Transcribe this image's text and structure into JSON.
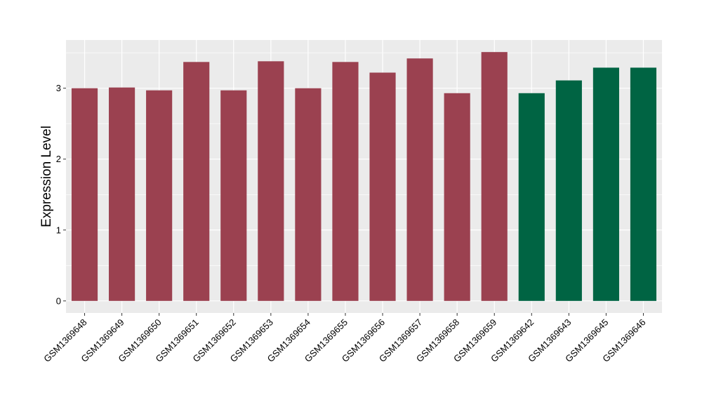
{
  "chart_data": {
    "type": "bar",
    "title": "",
    "xlabel": "",
    "ylabel": "Expression Level",
    "ylim": [
      -0.17,
      3.68
    ],
    "yticks": [
      0,
      1,
      2,
      3
    ],
    "grid": true,
    "legend": "none",
    "categories": [
      "GSM1369648",
      "GSM1369649",
      "GSM1369650",
      "GSM1369651",
      "GSM1369652",
      "GSM1369653",
      "GSM1369654",
      "GSM1369655",
      "GSM1369656",
      "GSM1369657",
      "GSM1369658",
      "GSM1369659",
      "GSM1369642",
      "GSM1369643",
      "GSM1369645",
      "GSM1369646"
    ],
    "values": [
      3.0,
      3.01,
      2.97,
      3.37,
      2.97,
      3.38,
      3.0,
      3.37,
      3.22,
      3.42,
      2.93,
      3.51,
      2.93,
      3.11,
      3.29,
      3.29
    ],
    "bar_colors": [
      "#9b4150",
      "#9b4150",
      "#9b4150",
      "#9b4150",
      "#9b4150",
      "#9b4150",
      "#9b4150",
      "#9b4150",
      "#9b4150",
      "#9b4150",
      "#9b4150",
      "#9b4150",
      "#006443",
      "#006443",
      "#006443",
      "#006443"
    ],
    "colors": {
      "panel": "#ebebeb",
      "grid": "#ffffff",
      "axis_tick": "#333333"
    }
  }
}
